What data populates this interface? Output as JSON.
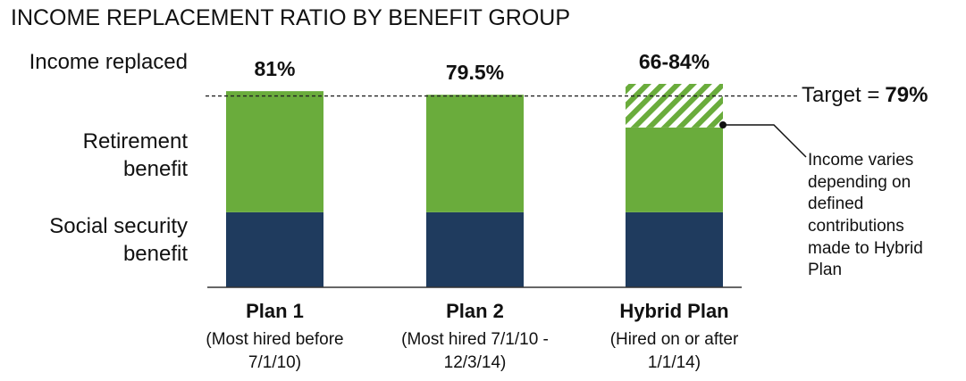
{
  "chart_data": {
    "type": "stacked-bar",
    "title": "INCOME REPLACEMENT RATIO BY BENEFIT GROUP",
    "categories": [
      "Plan 1",
      "Plan 2",
      "Hybrid Plan"
    ],
    "category_notes": [
      "(Most hired before 7/1/10)",
      "(Most hired 7/1/10 - 12/3/14)",
      "(Hired on or after 1/1/14)"
    ],
    "series": [
      {
        "name": "Social security benefit",
        "color": "#1f3b5e",
        "values": [
          31,
          31,
          31
        ]
      },
      {
        "name": "Retirement benefit",
        "color": "#6aac3c",
        "values": [
          50,
          48.5,
          35
        ]
      }
    ],
    "range_segment": {
      "color": "#6aac3c",
      "pattern": "hatch",
      "values": [
        null,
        null,
        18
      ]
    },
    "income_label": "Income replaced",
    "total_labels": [
      "81%",
      "79.5%",
      "66-84%"
    ],
    "target": 79,
    "target_label": "Target =",
    "target_value_label": "79%",
    "annotation": "Income varies depending on defined contributions made to Hybrid Plan"
  }
}
